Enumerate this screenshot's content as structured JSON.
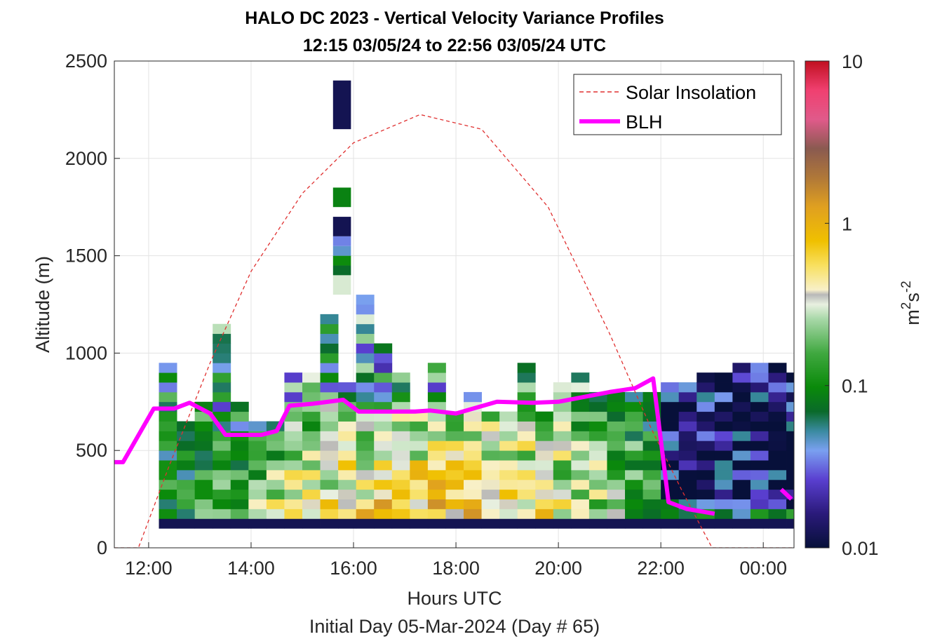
{
  "chart_data": {
    "type": "heatmap",
    "title": "HALO DC 2023 - Vertical Velocity Variance Profiles",
    "subtitle": "12:15 03/05/24 to 22:56 03/05/24  UTC",
    "xlabel": "Hours UTC",
    "xlabel2": "Initial Day 05-Mar-2024 (Day # 65)",
    "ylabel": "Altitude (m)",
    "xlim": [
      11.33,
      24.6
    ],
    "ylim": [
      0,
      2500
    ],
    "x_ticks": [
      12,
      14,
      16,
      18,
      20,
      22,
      24
    ],
    "x_tick_labels": [
      "12:00",
      "14:00",
      "16:00",
      "18:00",
      "20:00",
      "22:00",
      "00:00"
    ],
    "y_ticks": [
      0,
      500,
      1000,
      1500,
      2000,
      2500
    ],
    "y_tick_labels": [
      "0",
      "500",
      "1000",
      "1500",
      "2000",
      "2500"
    ],
    "grid": true,
    "legend": {
      "position": "top-right",
      "entries": [
        {
          "label": "Solar Insolation",
          "color": "#e03030",
          "style": "dashed"
        },
        {
          "label": "BLH",
          "color": "#ff00ff",
          "style": "solid"
        }
      ]
    },
    "colorbar": {
      "label_base": "m",
      "label_exp1": "2",
      "label_mid": "s",
      "label_exp2": "-2",
      "scale": "log",
      "range": [
        0.01,
        10
      ],
      "ticks": [
        0.01,
        0.1,
        1,
        10
      ],
      "tick_labels": [
        "0.01",
        "0.1",
        "1",
        "10"
      ]
    },
    "heatmap": {
      "first_time": 12.2,
      "time_step": 0.35,
      "ranges": [
        [
          100,
          950
        ],
        [
          100,
          650
        ],
        [
          100,
          750
        ],
        [
          100,
          1150
        ],
        [
          100,
          750
        ],
        [
          100,
          650
        ],
        [
          100,
          650
        ],
        [
          100,
          900
        ],
        [
          100,
          900
        ],
        [
          100,
          1200
        ],
        [
          100,
          850
        ],
        [
          100,
          1300
        ],
        [
          100,
          1050
        ],
        [
          100,
          900
        ],
        [
          100,
          700
        ],
        [
          100,
          950
        ],
        [
          100,
          700
        ],
        [
          100,
          800
        ],
        [
          100,
          700
        ],
        [
          100,
          700
        ],
        [
          100,
          950
        ],
        [
          100,
          700
        ],
        [
          100,
          850
        ],
        [
          100,
          900
        ],
        [
          100,
          800
        ],
        [
          100,
          800
        ],
        [
          100,
          800
        ],
        [
          100,
          800
        ],
        [
          100,
          850
        ],
        [
          100,
          850
        ],
        [
          100,
          900
        ],
        [
          100,
          900
        ],
        [
          100,
          950
        ],
        [
          100,
          950
        ],
        [
          100,
          950
        ],
        [
          100,
          900
        ]
      ],
      "profile_15_2": [
        {
          "range": [
            1300,
            1400
          ],
          "value": 0.3
        },
        {
          "range": [
            1400,
            1450
          ],
          "value": 0.07
        },
        {
          "range": [
            1450,
            1500
          ],
          "value": 0.1
        },
        {
          "range": [
            1500,
            1550
          ],
          "value": 0.045
        },
        {
          "range": [
            1550,
            1600
          ],
          "value": 0.035
        },
        {
          "range": [
            1600,
            1700
          ],
          "value": 0.012
        },
        {
          "range": [
            1750,
            1850
          ],
          "value": 0.09
        },
        {
          "range": [
            2150,
            2400
          ],
          "value": 0.012
        }
      ],
      "value_pattern": {
        "near_surface": 0.012,
        "boundary_layer_core": 0.8,
        "upper_layer": 0.08,
        "late_evening_upper": 0.015
      }
    },
    "series": [
      {
        "name": "BLH",
        "x": [
          11.33,
          11.5,
          12.1,
          12.5,
          12.8,
          13.2,
          13.5,
          14.2,
          14.5,
          14.75,
          15.2,
          15.8,
          16.1,
          17.2,
          17.5,
          18.0,
          18.8,
          19.5,
          20.0,
          21.0,
          21.5,
          21.85,
          22.15,
          22.5,
          23.05
        ],
        "y": [
          440,
          440,
          715,
          715,
          745,
          690,
          580,
          580,
          600,
          730,
          740,
          760,
          700,
          700,
          705,
          690,
          750,
          745,
          750,
          800,
          820,
          870,
          235,
          200,
          175
        ]
      },
      {
        "name": "BLH",
        "x": [
          24.35,
          24.55
        ],
        "y": [
          300,
          250
        ]
      },
      {
        "name": "Solar Insolation",
        "x": [
          11.33,
          11.8,
          12.4,
          13.2,
          14.0,
          15.0,
          16.0,
          17.3,
          18.5,
          19.8,
          21.0,
          21.8,
          22.4,
          23.0,
          24.6
        ],
        "y": [
          0,
          0,
          420,
          950,
          1420,
          1820,
          2080,
          2225,
          2150,
          1750,
          1100,
          620,
          300,
          0,
          0
        ]
      }
    ]
  }
}
